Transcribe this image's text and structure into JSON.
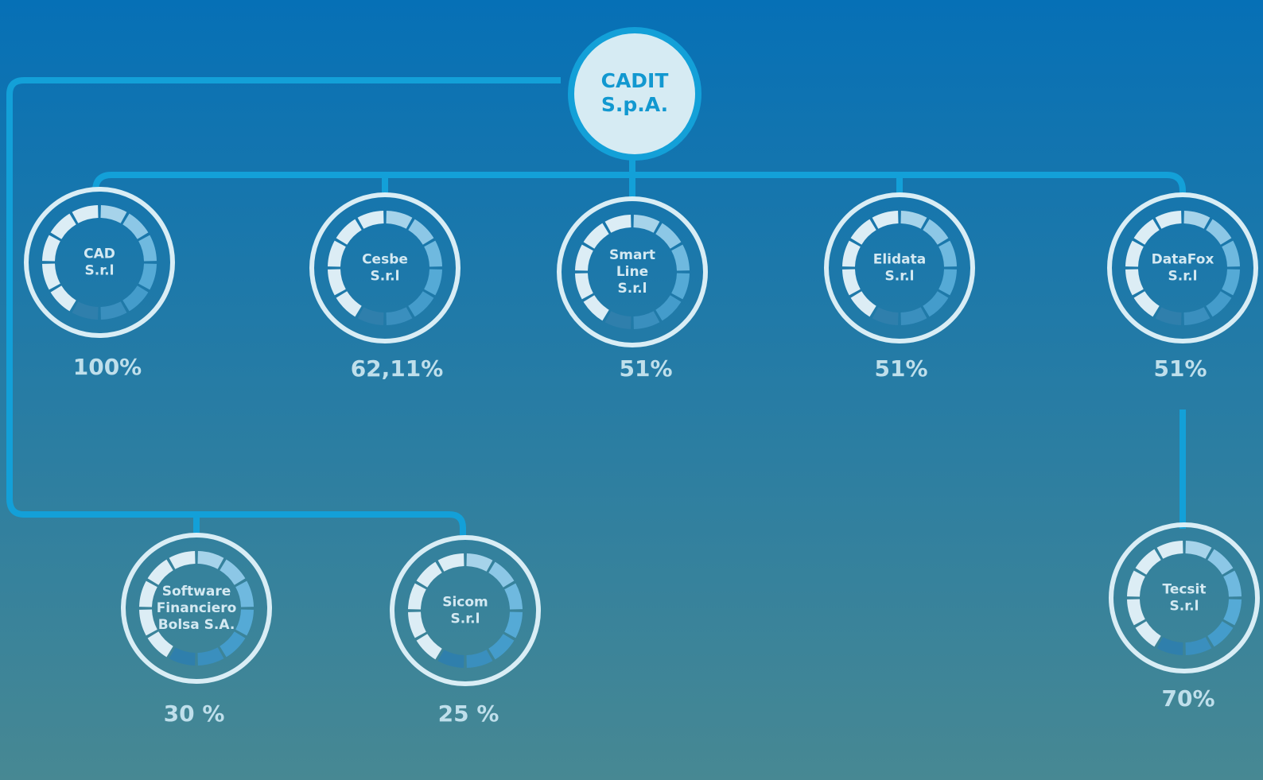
{
  "nodes": [
    {
      "label": [
        "CADIT",
        "S.p.A."
      ]
    },
    {
      "label": [
        "CAD",
        "S.r.l"
      ],
      "share": "100%"
    },
    {
      "label": [
        "Cesbe",
        "S.r.l"
      ],
      "share": "62,11%"
    },
    {
      "label": [
        "Smart",
        "Line",
        "S.r.l"
      ],
      "share": "51%"
    },
    {
      "label": [
        "Elidata",
        "S.r.l"
      ],
      "share": "51%"
    },
    {
      "label": [
        "DataFox",
        "S.r.l"
      ],
      "share": "51%"
    },
    {
      "label": [
        "Software",
        "Financiero",
        "Bolsa S.A."
      ],
      "share": "30 %"
    },
    {
      "label": [
        "Sicom",
        "S.r.l"
      ],
      "share": "25 %"
    },
    {
      "label": [
        "Tecsit",
        "S.r.l"
      ],
      "share": "70%"
    }
  ]
}
